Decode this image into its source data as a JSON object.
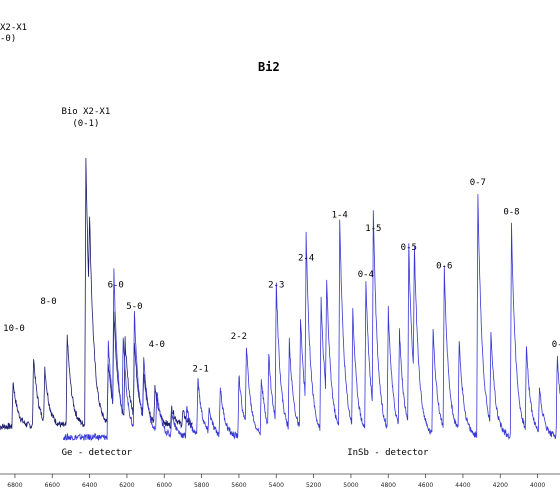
{
  "chart_data": {
    "type": "line",
    "title": "Bi2",
    "corner_label_line1": "X2-X1",
    "corner_label_line2": "-0)",
    "x_ticks": [
      6800,
      6600,
      6400,
      6200,
      6000,
      5800,
      5600,
      5400,
      5200,
      5000,
      4800,
      4600,
      4400,
      4200,
      4000
    ],
    "xlim": [
      6880,
      3880
    ],
    "band_labels": [
      {
        "text": "10-0",
        "x": 6805,
        "peak": 0.36
      },
      {
        "text": "8-0",
        "x": 6620,
        "peak": 0.46
      },
      {
        "text": "Bio X2-X1",
        "x": 6420,
        "peak": 1.0
      },
      {
        "text": "(0-1)",
        "x": 6420,
        "peak": 1.0
      },
      {
        "text": "6-0",
        "x": 6260,
        "peak": 0.52
      },
      {
        "text": "5-0",
        "x": 6160,
        "peak": 0.44
      },
      {
        "text": "4-0",
        "x": 6040,
        "peak": 0.3
      },
      {
        "text": "2-1",
        "x": 5805,
        "peak": 0.21
      },
      {
        "text": "2-2",
        "x": 5600,
        "peak": 0.33
      },
      {
        "text": "2-3",
        "x": 5400,
        "peak": 0.52
      },
      {
        "text": "2-4",
        "x": 5240,
        "peak": 0.62
      },
      {
        "text": "1-4",
        "x": 5060,
        "peak": 0.78
      },
      {
        "text": "1-5",
        "x": 4880,
        "peak": 0.73
      },
      {
        "text": "0-4",
        "x": 4920,
        "peak": 0.56
      },
      {
        "text": "0-5",
        "x": 4690,
        "peak": 0.66
      },
      {
        "text": "0-6",
        "x": 4500,
        "peak": 0.59
      },
      {
        "text": "0-7",
        "x": 4320,
        "peak": 0.9
      },
      {
        "text": "0-8",
        "x": 4140,
        "peak": 0.79
      },
      {
        "text": "0-",
        "x": 3895,
        "peak": 0.3
      }
    ],
    "series": [
      {
        "name": "Ge - detector",
        "color": "#1c1c6e",
        "x_range": [
          6880,
          5850
        ],
        "peaks": [
          {
            "x": 6810,
            "h": 0.17
          },
          {
            "x": 6700,
            "h": 0.26
          },
          {
            "x": 6640,
            "h": 0.2
          },
          {
            "x": 6520,
            "h": 0.34
          },
          {
            "x": 6420,
            "h": 1.0
          },
          {
            "x": 6400,
            "h": 0.35
          },
          {
            "x": 6300,
            "h": 0.23
          },
          {
            "x": 6270,
            "h": 0.36
          },
          {
            "x": 6210,
            "h": 0.29
          },
          {
            "x": 6160,
            "h": 0.28
          },
          {
            "x": 6110,
            "h": 0.16
          },
          {
            "x": 6050,
            "h": 0.13
          },
          {
            "x": 5960,
            "h": 0.07
          },
          {
            "x": 5900,
            "h": 0.05
          }
        ],
        "baseline": 0.02
      },
      {
        "name": "InSb - detector",
        "color": "#3636d6",
        "x_range": [
          6540,
          3880
        ],
        "peaks": [
          {
            "x": 6300,
            "h": 0.36
          },
          {
            "x": 6270,
            "h": 0.52
          },
          {
            "x": 6220,
            "h": 0.3
          },
          {
            "x": 6160,
            "h": 0.44
          },
          {
            "x": 6110,
            "h": 0.25
          },
          {
            "x": 6040,
            "h": 0.16
          },
          {
            "x": 5960,
            "h": 0.09
          },
          {
            "x": 5880,
            "h": 0.11
          },
          {
            "x": 5820,
            "h": 0.21
          },
          {
            "x": 5760,
            "h": 0.09
          },
          {
            "x": 5700,
            "h": 0.18
          },
          {
            "x": 5600,
            "h": 0.23
          },
          {
            "x": 5560,
            "h": 0.3
          },
          {
            "x": 5480,
            "h": 0.21
          },
          {
            "x": 5440,
            "h": 0.27
          },
          {
            "x": 5400,
            "h": 0.52
          },
          {
            "x": 5330,
            "h": 0.33
          },
          {
            "x": 5270,
            "h": 0.42
          },
          {
            "x": 5240,
            "h": 0.62
          },
          {
            "x": 5160,
            "h": 0.49
          },
          {
            "x": 5130,
            "h": 0.44
          },
          {
            "x": 5060,
            "h": 0.78
          },
          {
            "x": 4990,
            "h": 0.43
          },
          {
            "x": 4920,
            "h": 0.56
          },
          {
            "x": 4880,
            "h": 0.73
          },
          {
            "x": 4800,
            "h": 0.45
          },
          {
            "x": 4740,
            "h": 0.36
          },
          {
            "x": 4690,
            "h": 0.66
          },
          {
            "x": 4660,
            "h": 0.51
          },
          {
            "x": 4560,
            "h": 0.4
          },
          {
            "x": 4500,
            "h": 0.59
          },
          {
            "x": 4420,
            "h": 0.34
          },
          {
            "x": 4320,
            "h": 0.9
          },
          {
            "x": 4250,
            "h": 0.35
          },
          {
            "x": 4140,
            "h": 0.79
          },
          {
            "x": 4060,
            "h": 0.31
          },
          {
            "x": 3990,
            "h": 0.17
          },
          {
            "x": 3895,
            "h": 0.3
          }
        ],
        "baseline": 0.01
      }
    ],
    "detector_labels": [
      {
        "text": "Ge - detector",
        "near_x": 6550
      },
      {
        "text": "InSb - detector",
        "near_x": 5020
      }
    ]
  }
}
